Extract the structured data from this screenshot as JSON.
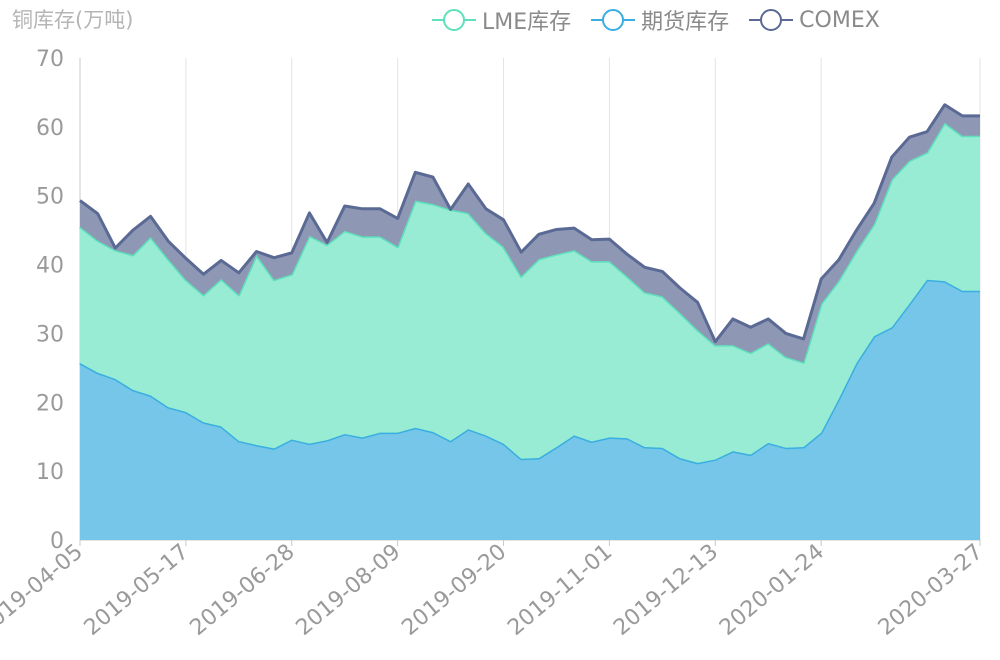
{
  "colors": {
    "lme": "#5ee0bd",
    "futures": "#3aaee0",
    "comex": "#5a6a94"
  },
  "chart_data": {
    "type": "area",
    "stacked": true,
    "ylabel": "铜库存(万吨)",
    "ylim": [
      0,
      70
    ],
    "yticks": [
      0,
      10,
      20,
      30,
      40,
      50,
      60,
      70
    ],
    "x_tick_labels": [
      "2019-04-05",
      "2019-05-17",
      "2019-06-28",
      "2019-08-09",
      "2019-09-20",
      "2019-11-01",
      "2019-12-13",
      "2020-01-24",
      "2020-03-27"
    ],
    "x": [
      "2019-04-05",
      "2019-04-12",
      "2019-04-19",
      "2019-04-26",
      "2019-05-03",
      "2019-05-10",
      "2019-05-17",
      "2019-05-24",
      "2019-05-31",
      "2019-06-07",
      "2019-06-14",
      "2019-06-21",
      "2019-06-28",
      "2019-07-05",
      "2019-07-12",
      "2019-07-19",
      "2019-07-26",
      "2019-08-02",
      "2019-08-09",
      "2019-08-16",
      "2019-08-23",
      "2019-08-30",
      "2019-09-06",
      "2019-09-13",
      "2019-09-20",
      "2019-09-27",
      "2019-10-04",
      "2019-10-11",
      "2019-10-18",
      "2019-10-25",
      "2019-11-01",
      "2019-11-08",
      "2019-11-15",
      "2019-11-22",
      "2019-11-29",
      "2019-12-06",
      "2019-12-13",
      "2019-12-20",
      "2019-12-27",
      "2020-01-03",
      "2020-01-10",
      "2020-01-17",
      "2020-01-24",
      "2020-01-31",
      "2020-02-07",
      "2020-02-14",
      "2020-02-21",
      "2020-02-28",
      "2020-03-06",
      "2020-03-13",
      "2020-03-20",
      "2020-03-27"
    ],
    "grid": "vertical",
    "legend_position": "top-right",
    "series": [
      {
        "name": "期货库存",
        "values": [
          25.7,
          24.3,
          23.4,
          21.8,
          21.0,
          19.3,
          18.6,
          17.1,
          16.5,
          14.4,
          13.8,
          13.3,
          14.6,
          14.0,
          14.5,
          15.4,
          14.9,
          15.6,
          15.6,
          16.3,
          15.7,
          14.4,
          16.1,
          15.2,
          14.0,
          11.8,
          11.9,
          13.5,
          15.2,
          14.3,
          14.9,
          14.8,
          13.5,
          13.4,
          11.9,
          11.2,
          11.7,
          12.9,
          12.4,
          14.1,
          13.4,
          13.5,
          15.6,
          20.5,
          25.7,
          29.6,
          30.9,
          34.3,
          37.8,
          37.6,
          36.2,
          36.2
        ]
      },
      {
        "name": "LME库存",
        "values": [
          19.8,
          19.2,
          18.7,
          19.6,
          23.0,
          21.5,
          19.2,
          18.5,
          21.4,
          21.2,
          27.6,
          24.5,
          24.0,
          30.2,
          28.4,
          29.5,
          29.2,
          28.5,
          27.0,
          33.0,
          33.1,
          33.6,
          31.4,
          29.4,
          28.6,
          26.5,
          28.9,
          28.0,
          26.9,
          26.2,
          25.6,
          23.5,
          22.5,
          22.0,
          21.1,
          19.3,
          16.6,
          15.4,
          14.8,
          14.5,
          13.2,
          12.3,
          18.7,
          17.2,
          16.3,
          16.3,
          21.5,
          20.8,
          18.5,
          23.0,
          22.5,
          22.5
        ]
      },
      {
        "name": "COMEX",
        "values": [
          3.8,
          3.9,
          0.3,
          3.6,
          3.0,
          2.6,
          3.1,
          3.0,
          2.7,
          3.2,
          0.5,
          3.2,
          3.1,
          3.3,
          0.3,
          3.6,
          4.0,
          4.0,
          4.1,
          4.1,
          3.9,
          0.0,
          4.2,
          3.5,
          3.9,
          3.5,
          3.6,
          3.6,
          3.2,
          3.1,
          3.2,
          3.2,
          3.6,
          3.6,
          3.6,
          4.0,
          0.5,
          3.8,
          3.7,
          3.5,
          3.4,
          3.4,
          3.6,
          3.0,
          3.0,
          3.0,
          3.2,
          3.4,
          3.0,
          2.6,
          2.9,
          2.9
        ]
      }
    ],
    "legend": [
      "LME库存",
      "期货库存",
      "COMEX"
    ]
  }
}
